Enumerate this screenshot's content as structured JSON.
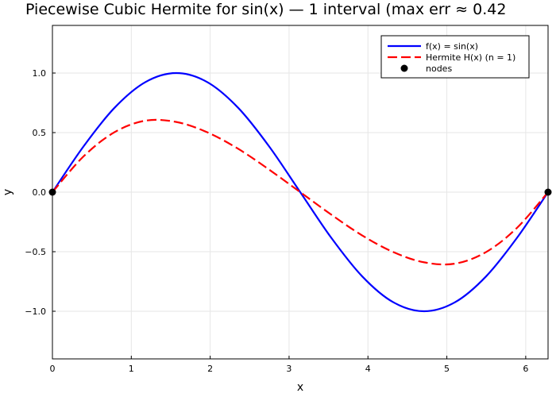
{
  "chart_data": {
    "type": "line",
    "title": "Piecewise Cubic Hermite for sin(x) — 1 interval  (max err ≈ 0.42",
    "xlabel": "x",
    "ylabel": "y",
    "xlim": [
      0,
      6.2832
    ],
    "ylim": [
      -1.4,
      1.4
    ],
    "x_ticks": [
      0,
      1,
      2,
      3,
      4,
      5,
      6
    ],
    "x_tick_labels": [
      "0",
      "1",
      "2",
      "3",
      "4",
      "5",
      "6"
    ],
    "y_ticks": [
      -1.0,
      -0.5,
      0.0,
      0.5,
      1.0
    ],
    "y_tick_labels": [
      "−1.0",
      "−0.5",
      "0.0",
      "0.5",
      "1.0"
    ],
    "grid": true,
    "legend_position": "top-right",
    "series": [
      {
        "name": "f(x) = sin(x)",
        "style": "solid",
        "color": "#0000ff",
        "x": [
          0,
          0.3927,
          0.7854,
          1.1781,
          1.5708,
          1.9635,
          2.3562,
          2.7489,
          3.1416,
          3.5343,
          3.927,
          4.3197,
          4.7124,
          5.1051,
          5.4978,
          5.8905,
          6.2832
        ],
        "y": [
          0,
          0.3827,
          0.7071,
          0.9239,
          1.0,
          0.9239,
          0.7071,
          0.3827,
          0,
          -0.3827,
          -0.7071,
          -0.9239,
          -1.0,
          -0.9239,
          -0.7071,
          -0.3827,
          0
        ]
      },
      {
        "name": "Hermite H(x)  (n = 1)",
        "style": "dashed",
        "color": "#ff0000",
        "x": [
          0,
          0.3927,
          0.7854,
          1.1781,
          1.5708,
          1.9635,
          2.3562,
          2.7489,
          3.1416,
          3.5343,
          3.927,
          4.3197,
          4.7124,
          5.1051,
          5.4978,
          5.8905,
          6.2832
        ],
        "y": [
          0,
          0.2991,
          0.5026,
          0.6002,
          0.5891,
          0.5026,
          0.3634,
          0.1885,
          0,
          -0.1885,
          -0.3634,
          -0.5026,
          -0.5891,
          -0.6002,
          -0.5026,
          -0.2991,
          0
        ]
      },
      {
        "name": "nodes",
        "style": "markers",
        "color": "#000000",
        "x": [
          0,
          6.2832
        ],
        "y": [
          0,
          0
        ]
      }
    ]
  }
}
